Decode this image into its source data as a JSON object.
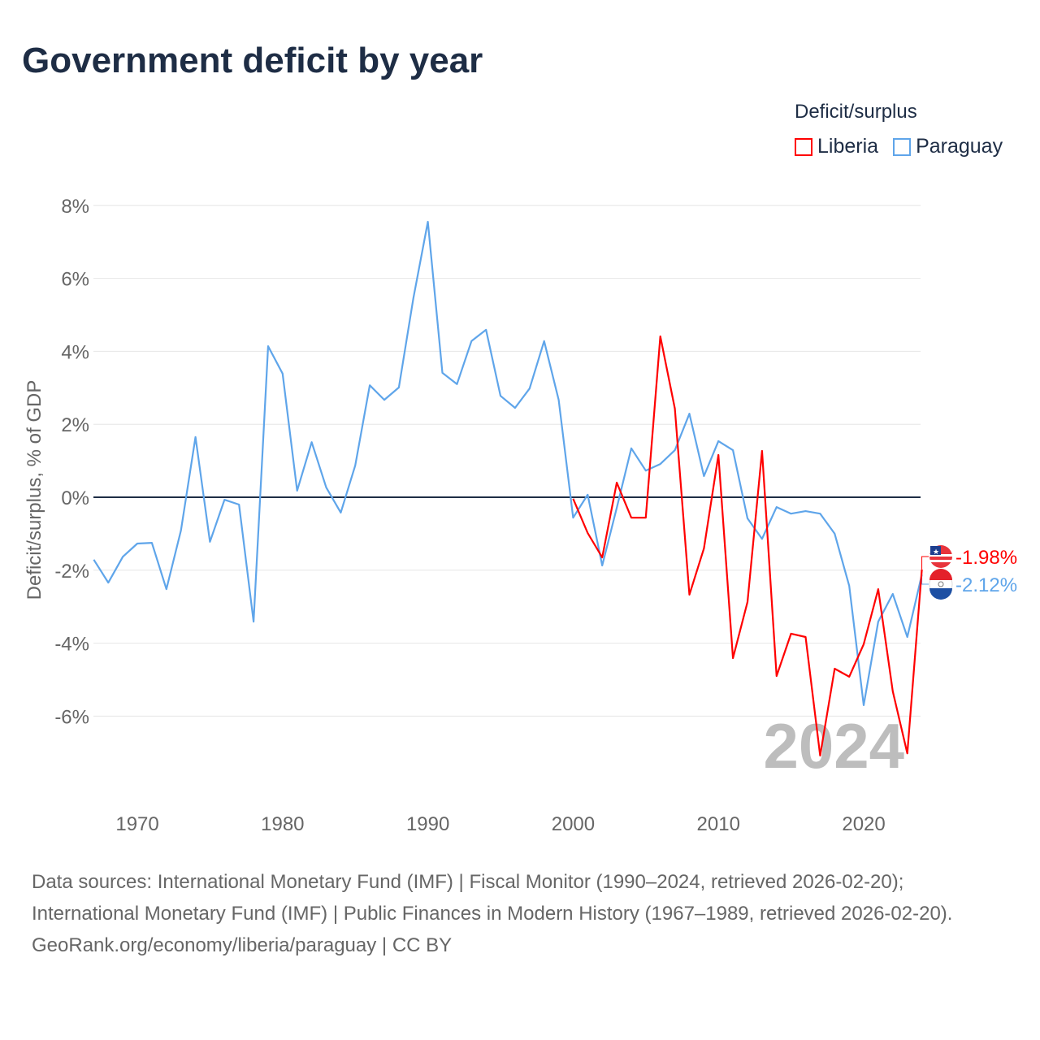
{
  "title": "Government deficit by year",
  "legend": {
    "title": "Deficit/surplus",
    "items": [
      {
        "name": "Liberia",
        "color": "#ff0000"
      },
      {
        "name": "Paraguay",
        "color": "#5fa5ea"
      }
    ]
  },
  "chart_data": {
    "type": "line",
    "title": "Government deficit by year",
    "xlabel": "",
    "ylabel": "Deficit/surplus, % of GDP",
    "xlim": [
      1967,
      2024
    ],
    "ylim": [
      -8,
      8
    ],
    "x_ticks": [
      1970,
      1980,
      1990,
      2000,
      2010,
      2020
    ],
    "y_ticks": [
      8,
      6,
      4,
      2,
      0,
      -2,
      -4,
      -6
    ],
    "y_tick_labels": [
      "8%",
      "6%",
      "4%",
      "2%",
      "0%",
      "-2%",
      "-4%",
      "-6%"
    ],
    "year_watermark": "2024",
    "series": [
      {
        "name": "Paraguay",
        "color": "#5fa5ea",
        "end_label": "-2.12%",
        "start_year": 1967,
        "values": [
          -1.71,
          -2.34,
          -1.63,
          -1.27,
          -1.25,
          -2.52,
          -0.91,
          1.65,
          -1.22,
          -0.07,
          -0.2,
          -3.41,
          4.14,
          3.39,
          0.18,
          1.51,
          0.27,
          -0.42,
          0.87,
          3.07,
          2.67,
          3.01,
          5.46,
          7.55,
          3.41,
          3.1,
          4.28,
          4.59,
          2.78,
          2.45,
          2.98,
          4.28,
          2.67,
          -0.56,
          0.07,
          -1.87,
          -0.29,
          1.34,
          0.73,
          0.91,
          1.29,
          2.29,
          0.58,
          1.54,
          1.29,
          -0.58,
          -1.14,
          -0.27,
          -0.45,
          -0.38,
          -0.45,
          -1.0,
          -2.43,
          -5.7,
          -3.41,
          -2.65,
          -3.83,
          -2.12
        ]
      },
      {
        "name": "Liberia",
        "color": "#ff0000",
        "end_label": "-1.98%",
        "start_year": 2000,
        "values": [
          -0.04,
          -0.98,
          -1.65,
          0.4,
          -0.56,
          -0.56,
          4.41,
          2.43,
          -2.67,
          -1.4,
          1.16,
          -4.41,
          -2.87,
          1.27,
          -4.9,
          -3.74,
          -3.83,
          -7.08,
          -4.7,
          -4.92,
          -4.03,
          -2.52,
          -5.32,
          -7.02,
          -1.98
        ]
      }
    ]
  },
  "footer": {
    "sources": "Data sources: International Monetary Fund (IMF) | Fiscal Monitor (1990–2024, retrieved 2026-02-20); International Monetary Fund (IMF) | Public Finances in Modern History (1967–1989, retrieved 2026-02-20).",
    "credit": "GeoRank.org/economy/liberia/paraguay | CC BY"
  }
}
